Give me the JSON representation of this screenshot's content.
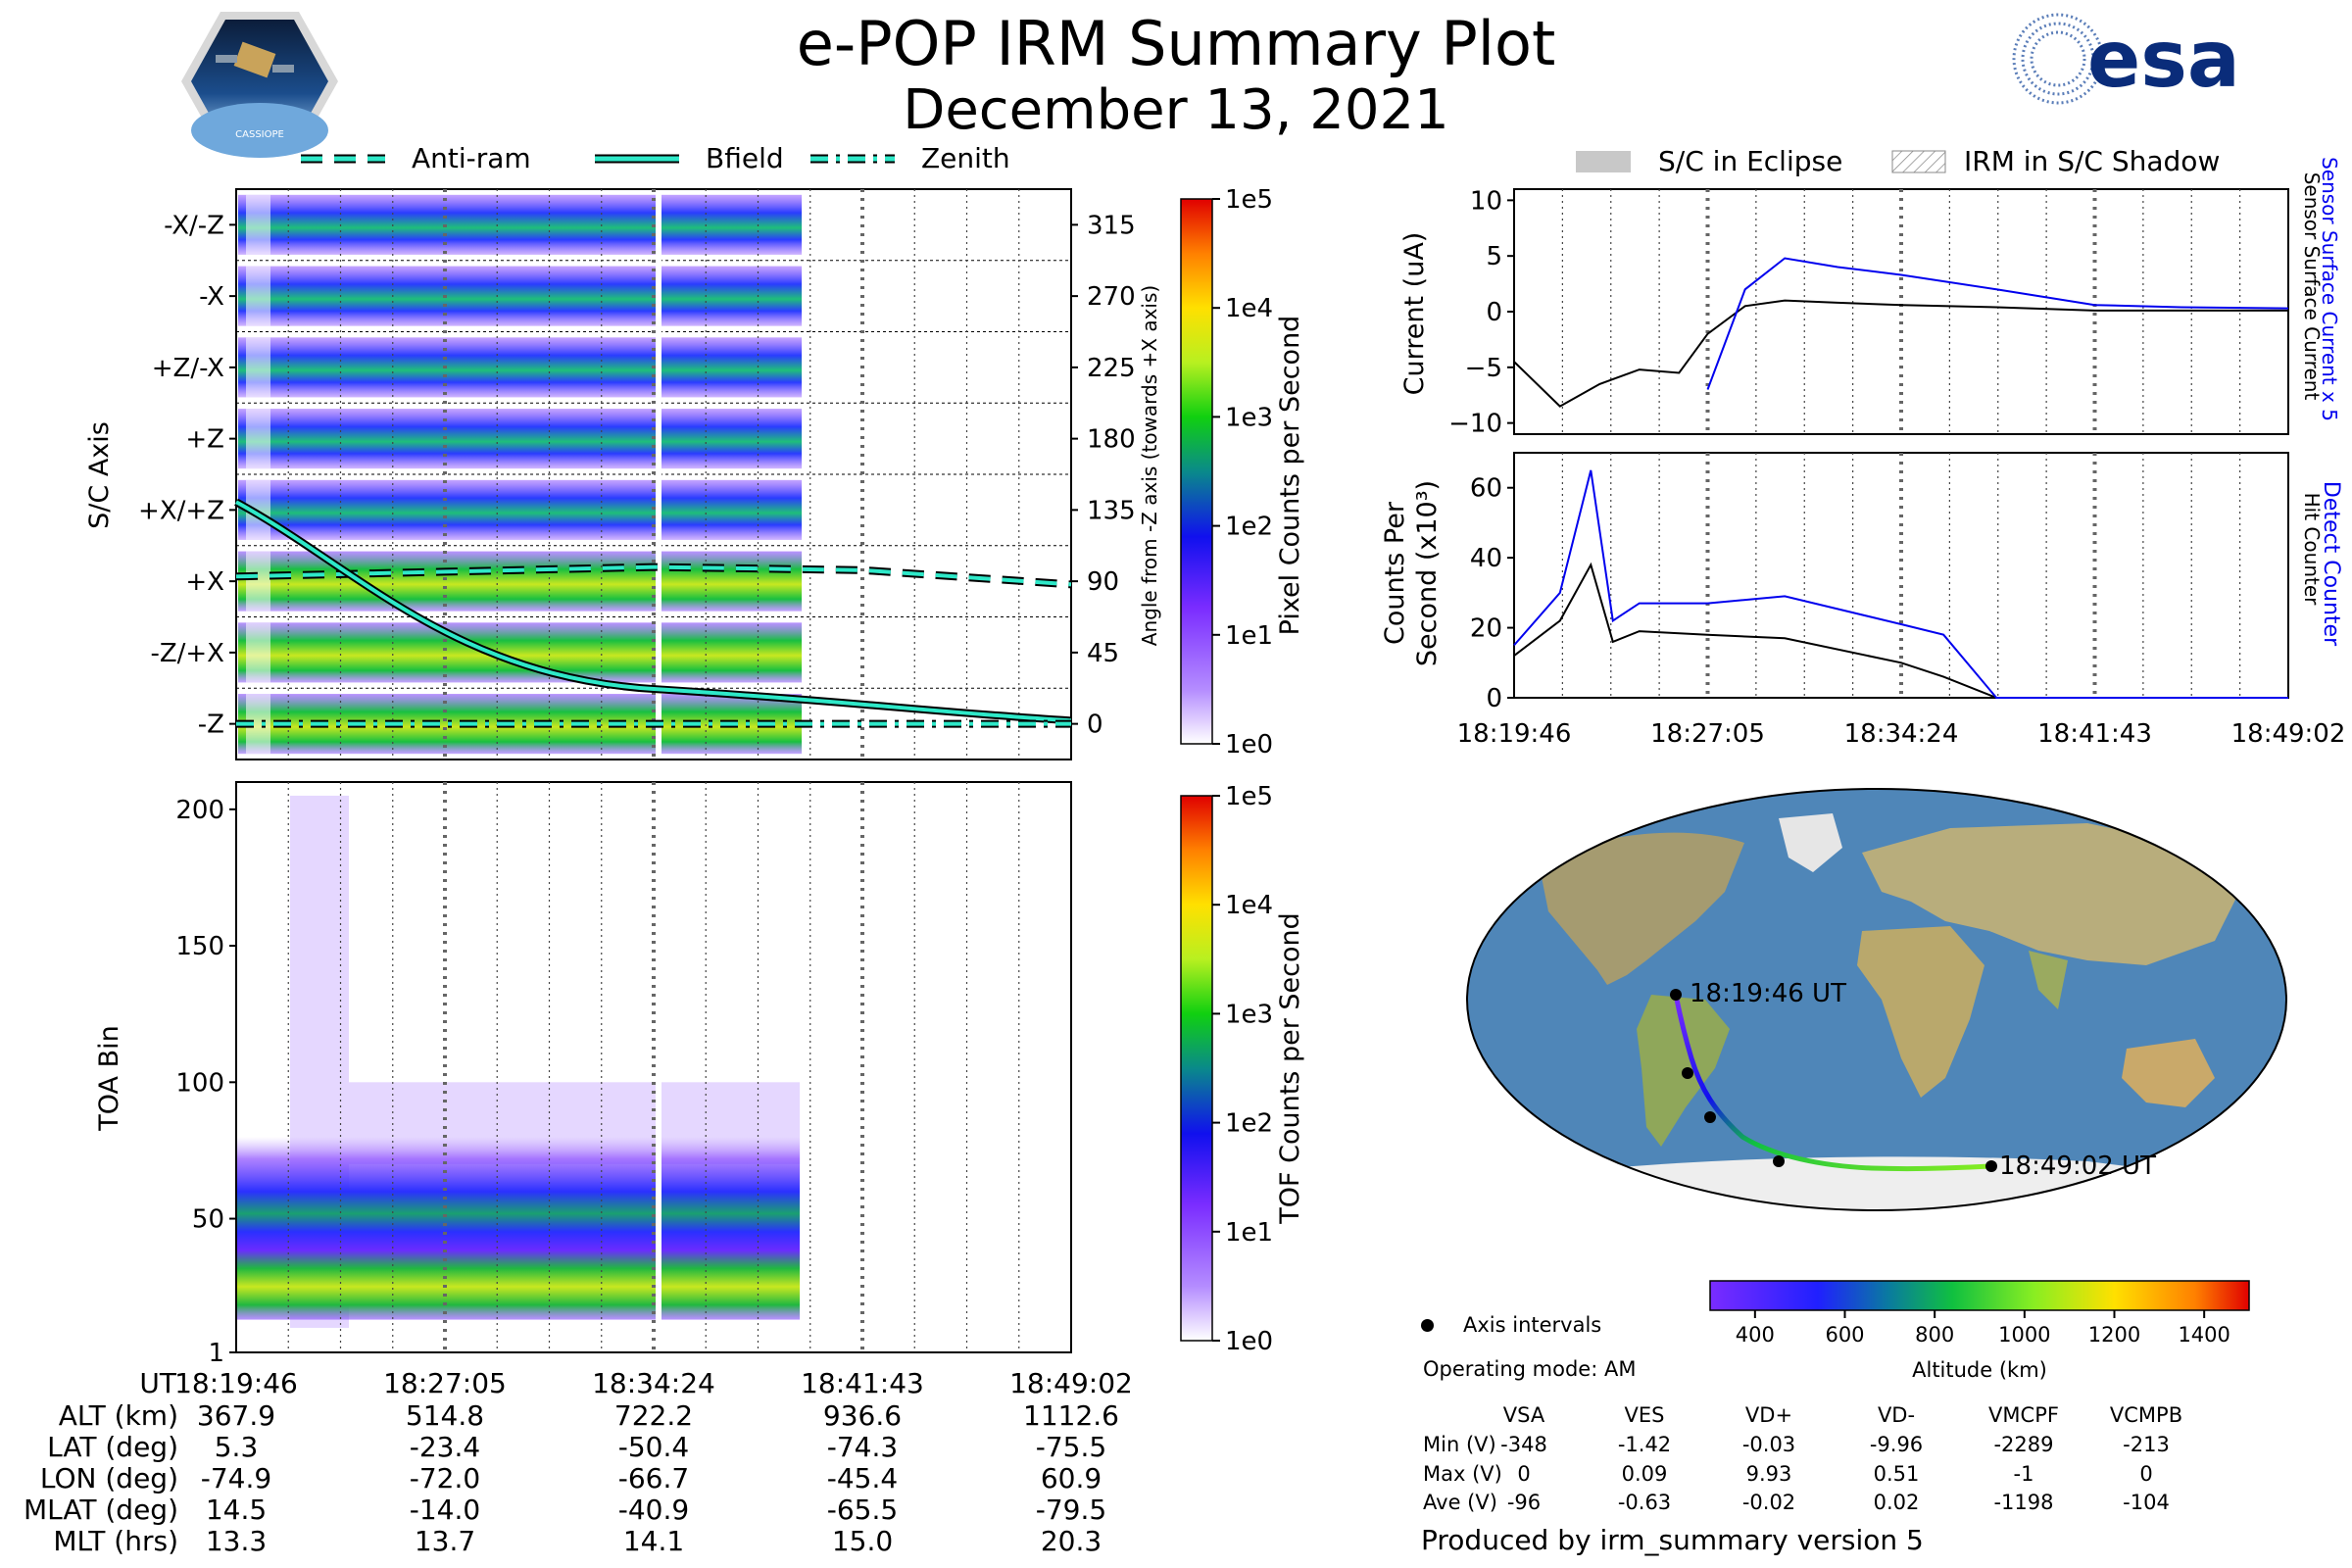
{
  "header": {
    "title": "e-POP IRM Summary Plot",
    "date": "December 13, 2021",
    "left_logo_text": "CASSIOPE",
    "right_logo_text": "esa"
  },
  "legend_top_left": [
    "Anti-ram",
    "Bfield",
    "Zenith"
  ],
  "legend_top_right": [
    "S/C in Eclipse",
    "IRM in S/C Shadow"
  ],
  "colors": {
    "anti_ram": "#1f8a80",
    "bfield": "#1f8a80",
    "sensor_surface": "#000000",
    "sensor_x5": "#0000ee",
    "track_low": "#7a2cff",
    "track_high": "#66ee22"
  },
  "panel1": {
    "ylabel": "S/C Axis",
    "yticks": [
      "-X/-Z",
      "-X",
      "+Z/-X",
      "+Z",
      "+X/+Z",
      "+X",
      "-Z/+X",
      "-Z"
    ],
    "right_ticks": [
      "315",
      "270",
      "225",
      "180",
      "135",
      "90",
      "45",
      "0"
    ],
    "right_label": "Angle from -Z axis (towards +X axis)",
    "cbar_label": "Pixel Counts per Second",
    "cbar_ticks": [
      "1e5",
      "1e4",
      "1e3",
      "1e2",
      "1e1",
      "1e0"
    ]
  },
  "panel2": {
    "ylabel": "TOA Bin",
    "yticks": [
      "200",
      "150",
      "100",
      "50",
      "1"
    ],
    "cbar_label": "TOF Counts per Second",
    "cbar_ticks": [
      "1e5",
      "1e4",
      "1e3",
      "1e2",
      "1e1",
      "1e0"
    ]
  },
  "time_ticks": [
    "18:19:46",
    "18:27:05",
    "18:34:24",
    "18:41:43",
    "18:49:02"
  ],
  "ephemeris": {
    "labels": [
      "UT",
      "ALT (km)",
      "LAT (deg)",
      "LON (deg)",
      "MLAT (deg)",
      "MLT (hrs)"
    ],
    "rows": [
      [
        "367.9",
        "514.8",
        "722.2",
        "936.6",
        "1112.6"
      ],
      [
        "5.3",
        "-23.4",
        "-50.4",
        "-74.3",
        "-75.5"
      ],
      [
        "-74.9",
        "-72.0",
        "-66.7",
        "-45.4",
        "60.9"
      ],
      [
        "14.5",
        "-14.0",
        "-40.9",
        "-65.5",
        "-79.5"
      ],
      [
        "13.3",
        "13.7",
        "14.1",
        "15.0",
        "20.3"
      ]
    ]
  },
  "current_panel": {
    "ylabel": "Current (uA)",
    "yticks": [
      "10",
      "5",
      "0",
      "−5",
      "−10"
    ],
    "right_label_blue": "Sensor Surface Current x 5",
    "right_label_black": "Sensor Surface Current"
  },
  "counts_panel": {
    "ylabel1": "Counts Per",
    "ylabel2": "Second (x10³)",
    "yticks": [
      "60",
      "40",
      "20",
      "0"
    ],
    "right_label_blue": "Detect Counter",
    "right_label_black": "Hit Counter"
  },
  "map": {
    "start_label": "18:19:46 UT",
    "end_label": "18:49:02 UT",
    "legend_dot": "Axis intervals",
    "operating_mode": "Operating mode: AM"
  },
  "altitude_cbar": {
    "ticks": [
      "400",
      "600",
      "800",
      "1000",
      "1200",
      "1400"
    ],
    "label": "Altitude (km)"
  },
  "voltage_table": {
    "headers": [
      "VSA",
      "VES",
      "VD+",
      "VD-",
      "VMCPF",
      "VCMPB"
    ],
    "row_labels": [
      "Min (V)",
      "Max (V)",
      "Ave (V)"
    ],
    "rows": [
      [
        "-348",
        "-1.42",
        "-0.03",
        "-9.96",
        "-2289",
        "-213"
      ],
      [
        "0",
        "0.09",
        "9.93",
        "0.51",
        "-1",
        "0"
      ],
      [
        "-96",
        "-0.63",
        "-0.02",
        "0.02",
        "-1198",
        "-104"
      ]
    ]
  },
  "footer": "Produced by irm_summary version 5",
  "chart_data": [
    {
      "type": "heatmap",
      "title": "",
      "ylabel": "S/C Axis",
      "categories": [
        "-X/-Z",
        "-X",
        "+Z/-X",
        "+Z",
        "+X/+Z",
        "+X",
        "-Z/+X",
        "-Z"
      ],
      "x": [
        "18:19:46",
        "18:27:05",
        "18:34:24",
        "18:41:43",
        "18:49:02"
      ],
      "series": [
        {
          "name": "Anti-ram",
          "y": [
            93,
            96,
            99,
            97,
            88
          ]
        },
        {
          "name": "Bfield",
          "y": [
            140,
            58,
            22,
            12,
            2
          ]
        },
        {
          "name": "Zenith",
          "y": [
            0,
            0,
            0,
            0,
            0
          ]
        }
      ],
      "colorbar": "Pixel Counts per Second",
      "clim": [
        "1e0",
        "1e5"
      ]
    },
    {
      "type": "heatmap",
      "ylabel": "TOA Bin",
      "ylim": [
        1,
        210
      ],
      "x": [
        "18:19:46",
        "18:27:05",
        "18:34:24",
        "18:41:43",
        "18:49:02"
      ],
      "colorbar": "TOF Counts per Second",
      "clim": [
        "1e0",
        "1e5"
      ]
    },
    {
      "type": "line",
      "ylabel": "Current (uA)",
      "ylim": [
        -11,
        11
      ],
      "x": [
        "18:19:46",
        "18:21:30",
        "18:23:00",
        "18:24:30",
        "18:26:00",
        "18:27:05",
        "18:28:30",
        "18:30:00",
        "18:32:00",
        "18:34:24",
        "18:38:00",
        "18:41:43",
        "18:45:00",
        "18:49:02"
      ],
      "series": [
        {
          "name": "Sensor Surface Current",
          "values": [
            -4.5,
            -8.5,
            -6.5,
            -5.2,
            -5.5,
            -2,
            0.5,
            1,
            0.8,
            0.6,
            0.4,
            0.1,
            0.1,
            0.1
          ]
        },
        {
          "name": "Sensor Surface Current x 5",
          "values": [
            null,
            null,
            null,
            null,
            null,
            -7,
            2,
            4.8,
            4,
            3.3,
            2,
            0.6,
            0.4,
            0.3
          ]
        }
      ]
    },
    {
      "type": "line",
      "ylabel": "Counts Per Second (x10³)",
      "ylim": [
        0,
        70
      ],
      "x": [
        "18:19:46",
        "18:21:30",
        "18:22:40",
        "18:23:30",
        "18:24:30",
        "18:27:05",
        "18:30:00",
        "18:34:24",
        "18:36:00",
        "18:38:00",
        "18:41:43",
        "18:49:02"
      ],
      "series": [
        {
          "name": "Hit Counter",
          "values": [
            12,
            22,
            38,
            16,
            19,
            18,
            17,
            10,
            6,
            0,
            0,
            0
          ]
        },
        {
          "name": "Detect Counter",
          "values": [
            15,
            30,
            65,
            22,
            27,
            27,
            29,
            21,
            18,
            0,
            0,
            0
          ]
        }
      ]
    }
  ]
}
